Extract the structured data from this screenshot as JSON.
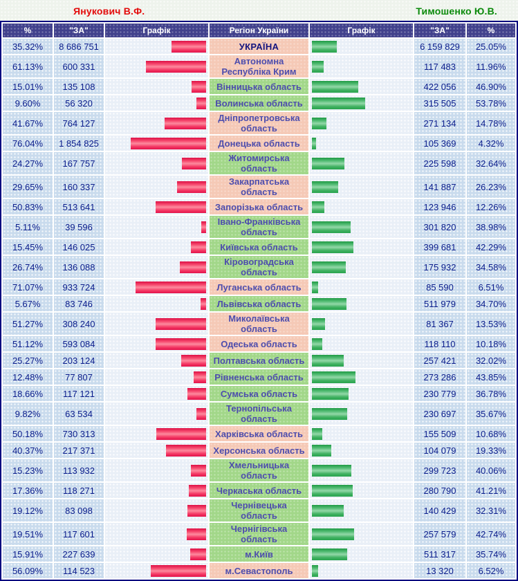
{
  "header": {
    "left_candidate": "Янукович В.Ф.",
    "right_candidate": "Тимошенко Ю.В.",
    "left_color": "#e30b0b",
    "right_color": "#0b8a0b"
  },
  "table_headers": {
    "pct": "%",
    "za": "\"ЗА\"",
    "graph": "Графік",
    "region": "Регіон України"
  },
  "colors": {
    "header_bg": "#41418c",
    "numeric_cell_bg": "#c9dbed",
    "graph_cell_bg": "#e9eff7",
    "region_win_left_bg": "#f5c9b6",
    "region_win_right_bg": "#a2d789",
    "bar_left": "#f0255a",
    "bar_right": "#2fa953",
    "border": "#000080",
    "number_text": "#0b1d8c",
    "region_text": "#4d4dad"
  },
  "rows": [
    {
      "region": "УКРАЇНА",
      "is_total": true,
      "yan_pct": "35.32%",
      "yan_votes": "8 686 751",
      "yan": 35.32,
      "tym": 25.05,
      "tym_votes": "6 159 829",
      "tym_pct": "25.05%"
    },
    {
      "region": "Автономна Республіка Крим",
      "yan_pct": "61.13%",
      "yan_votes": "600 331",
      "yan": 61.13,
      "tym": 11.96,
      "tym_votes": "117 483",
      "tym_pct": "11.96%"
    },
    {
      "region": "Вінницька область",
      "yan_pct": "15.01%",
      "yan_votes": "135 108",
      "yan": 15.01,
      "tym": 46.9,
      "tym_votes": "422 056",
      "tym_pct": "46.90%"
    },
    {
      "region": "Волинська область",
      "yan_pct": "9.60%",
      "yan_votes": "56 320",
      "yan": 9.6,
      "tym": 53.78,
      "tym_votes": "315 505",
      "tym_pct": "53.78%"
    },
    {
      "region": "Дніпропетровська область",
      "yan_pct": "41.67%",
      "yan_votes": "764 127",
      "yan": 41.67,
      "tym": 14.78,
      "tym_votes": "271 134",
      "tym_pct": "14.78%"
    },
    {
      "region": "Донецька область",
      "yan_pct": "76.04%",
      "yan_votes": "1 854 825",
      "yan": 76.04,
      "tym": 4.32,
      "tym_votes": "105 369",
      "tym_pct": "4.32%"
    },
    {
      "region": "Житомирська область",
      "yan_pct": "24.27%",
      "yan_votes": "167 757",
      "yan": 24.27,
      "tym": 32.64,
      "tym_votes": "225 598",
      "tym_pct": "32.64%"
    },
    {
      "region": "Закарпатська область",
      "yan_pct": "29.65%",
      "yan_votes": "160 337",
      "yan": 29.65,
      "tym": 26.23,
      "tym_votes": "141 887",
      "tym_pct": "26.23%"
    },
    {
      "region": "Запорізька область",
      "yan_pct": "50.83%",
      "yan_votes": "513 641",
      "yan": 50.83,
      "tym": 12.26,
      "tym_votes": "123 946",
      "tym_pct": "12.26%"
    },
    {
      "region": "Івано-Франківська область",
      "yan_pct": "5.11%",
      "yan_votes": "39 596",
      "yan": 5.11,
      "tym": 38.98,
      "tym_votes": "301 820",
      "tym_pct": "38.98%"
    },
    {
      "region": "Київська область",
      "yan_pct": "15.45%",
      "yan_votes": "146 025",
      "yan": 15.45,
      "tym": 42.29,
      "tym_votes": "399 681",
      "tym_pct": "42.29%"
    },
    {
      "region": "Кіровоградська область",
      "yan_pct": "26.74%",
      "yan_votes": "136 088",
      "yan": 26.74,
      "tym": 34.58,
      "tym_votes": "175 932",
      "tym_pct": "34.58%"
    },
    {
      "region": "Луганська область",
      "yan_pct": "71.07%",
      "yan_votes": "933 724",
      "yan": 71.07,
      "tym": 6.51,
      "tym_votes": "85 590",
      "tym_pct": "6.51%"
    },
    {
      "region": "Львівська область",
      "yan_pct": "5.67%",
      "yan_votes": "83 746",
      "yan": 5.67,
      "tym": 34.7,
      "tym_votes": "511 979",
      "tym_pct": "34.70%"
    },
    {
      "region": "Миколаївська область",
      "yan_pct": "51.27%",
      "yan_votes": "308 240",
      "yan": 51.27,
      "tym": 13.53,
      "tym_votes": "81 367",
      "tym_pct": "13.53%"
    },
    {
      "region": "Одеська область",
      "yan_pct": "51.12%",
      "yan_votes": "593 084",
      "yan": 51.12,
      "tym": 10.18,
      "tym_votes": "118 110",
      "tym_pct": "10.18%"
    },
    {
      "region": "Полтавська область",
      "yan_pct": "25.27%",
      "yan_votes": "203 124",
      "yan": 25.27,
      "tym": 32.02,
      "tym_votes": "257 421",
      "tym_pct": "32.02%"
    },
    {
      "region": "Рівненська область",
      "yan_pct": "12.48%",
      "yan_votes": "77 807",
      "yan": 12.48,
      "tym": 43.85,
      "tym_votes": "273 286",
      "tym_pct": "43.85%"
    },
    {
      "region": "Сумська область",
      "yan_pct": "18.66%",
      "yan_votes": "117 121",
      "yan": 18.66,
      "tym": 36.78,
      "tym_votes": "230 779",
      "tym_pct": "36.78%"
    },
    {
      "region": "Тернопільська область",
      "yan_pct": "9.82%",
      "yan_votes": "63 534",
      "yan": 9.82,
      "tym": 35.67,
      "tym_votes": "230 697",
      "tym_pct": "35.67%"
    },
    {
      "region": "Харківська область",
      "yan_pct": "50.18%",
      "yan_votes": "730 313",
      "yan": 50.18,
      "tym": 10.68,
      "tym_votes": "155 509",
      "tym_pct": "10.68%"
    },
    {
      "region": "Херсонська область",
      "yan_pct": "40.37%",
      "yan_votes": "217 371",
      "yan": 40.37,
      "tym": 19.33,
      "tym_votes": "104 079",
      "tym_pct": "19.33%"
    },
    {
      "region": "Хмельницька область",
      "yan_pct": "15.23%",
      "yan_votes": "113 932",
      "yan": 15.23,
      "tym": 40.06,
      "tym_votes": "299 723",
      "tym_pct": "40.06%"
    },
    {
      "region": "Черкаська область",
      "yan_pct": "17.36%",
      "yan_votes": "118 271",
      "yan": 17.36,
      "tym": 41.21,
      "tym_votes": "280 790",
      "tym_pct": "41.21%"
    },
    {
      "region": "Чернівецька область",
      "yan_pct": "19.12%",
      "yan_votes": "83 098",
      "yan": 19.12,
      "tym": 32.31,
      "tym_votes": "140 429",
      "tym_pct": "32.31%"
    },
    {
      "region": "Чернігівська область",
      "yan_pct": "19.51%",
      "yan_votes": "117 601",
      "yan": 19.51,
      "tym": 42.74,
      "tym_votes": "257 579",
      "tym_pct": "42.74%"
    },
    {
      "region": "м.Київ",
      "yan_pct": "15.91%",
      "yan_votes": "227 639",
      "yan": 15.91,
      "tym": 35.74,
      "tym_votes": "511 317",
      "tym_pct": "35.74%"
    },
    {
      "region": "м.Севастополь",
      "yan_pct": "56.09%",
      "yan_votes": "114 523",
      "yan": 56.09,
      "tym": 6.52,
      "tym_votes": "13 320",
      "tym_pct": "6.52%"
    }
  ],
  "chart_data": {
    "type": "bar",
    "orientation": "horizontal",
    "xlabel": "% \"ЗА\"",
    "ylabel": "Регіон України",
    "xlim": [
      0,
      100
    ],
    "legend_position": "top",
    "categories": [
      "УКРАЇНА",
      "Автономна Республіка Крим",
      "Вінницька область",
      "Волинська область",
      "Дніпропетровська область",
      "Донецька область",
      "Житомирська область",
      "Закарпатська область",
      "Запорізька область",
      "Івано-Франківська область",
      "Київська область",
      "Кіровоградська область",
      "Луганська область",
      "Львівська область",
      "Миколаївська область",
      "Одеська область",
      "Полтавська область",
      "Рівненська область",
      "Сумська область",
      "Тернопільська область",
      "Харківська область",
      "Херсонська область",
      "Хмельницька область",
      "Черкаська область",
      "Чернівецька область",
      "Чернігівська область",
      "м.Київ",
      "м.Севастополь"
    ],
    "series": [
      {
        "name": "Янукович В.Ф.",
        "color": "#f0255a",
        "values": [
          35.32,
          61.13,
          15.01,
          9.6,
          41.67,
          76.04,
          24.27,
          29.65,
          50.83,
          5.11,
          15.45,
          26.74,
          71.07,
          5.67,
          51.27,
          51.12,
          25.27,
          12.48,
          18.66,
          9.82,
          50.18,
          40.37,
          15.23,
          17.36,
          19.12,
          19.51,
          15.91,
          56.09
        ],
        "votes": [
          8686751,
          600331,
          135108,
          56320,
          764127,
          1854825,
          167757,
          160337,
          513641,
          39596,
          146025,
          136088,
          933724,
          83746,
          308240,
          593084,
          203124,
          77807,
          117121,
          63534,
          730313,
          217371,
          113932,
          118271,
          83098,
          117601,
          227639,
          114523
        ]
      },
      {
        "name": "Тимошенко Ю.В.",
        "color": "#2fa953",
        "values": [
          25.05,
          11.96,
          46.9,
          53.78,
          14.78,
          4.32,
          32.64,
          26.23,
          12.26,
          38.98,
          42.29,
          34.58,
          6.51,
          34.7,
          13.53,
          10.18,
          32.02,
          43.85,
          36.78,
          35.67,
          10.68,
          19.33,
          40.06,
          41.21,
          32.31,
          42.74,
          35.74,
          6.52
        ],
        "votes": [
          6159829,
          117483,
          422056,
          315505,
          271134,
          105369,
          225598,
          141887,
          123946,
          301820,
          399681,
          175932,
          85590,
          511979,
          81367,
          118110,
          257421,
          273286,
          230779,
          230697,
          155509,
          104079,
          299723,
          280790,
          140429,
          257579,
          511317,
          13320
        ]
      }
    ]
  }
}
